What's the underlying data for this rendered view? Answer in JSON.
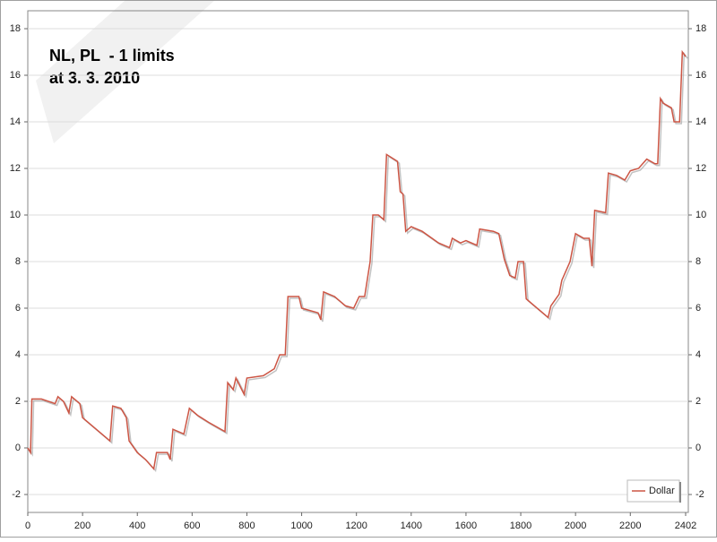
{
  "chart_data": {
    "type": "line",
    "title": "NL, PL  - 1 limits",
    "subtitle": "at 3. 3. 2010",
    "x": [
      0,
      10,
      15,
      50,
      100,
      110,
      130,
      150,
      160,
      190,
      200,
      250,
      290,
      300,
      310,
      340,
      360,
      370,
      400,
      430,
      460,
      470,
      510,
      520,
      530,
      570,
      590,
      620,
      660,
      720,
      730,
      750,
      760,
      790,
      800,
      860,
      900,
      920,
      940,
      950,
      990,
      1000,
      1060,
      1070,
      1080,
      1120,
      1160,
      1190,
      1210,
      1230,
      1250,
      1260,
      1280,
      1300,
      1310,
      1350,
      1360,
      1370,
      1380,
      1400,
      1440,
      1500,
      1540,
      1550,
      1580,
      1600,
      1640,
      1650,
      1700,
      1720,
      1740,
      1760,
      1780,
      1790,
      1810,
      1820,
      1850,
      1880,
      1900,
      1910,
      1940,
      1950,
      1980,
      2000,
      2030,
      2050,
      2060,
      2070,
      2110,
      2120,
      2150,
      2180,
      2200,
      2230,
      2260,
      2290,
      2300,
      2310,
      2320,
      2350,
      2360,
      2380,
      2390,
      2402
    ],
    "series": [
      {
        "name": "Dollar",
        "color": "#cc5544",
        "values": [
          0,
          -0.2,
          2.1,
          2.1,
          1.9,
          2.2,
          2.0,
          1.5,
          2.2,
          1.9,
          1.3,
          0.8,
          0.4,
          0.3,
          1.8,
          1.7,
          1.3,
          0.3,
          -0.2,
          -0.5,
          -0.9,
          -0.2,
          -0.2,
          -0.5,
          0.8,
          0.6,
          1.7,
          1.4,
          1.1,
          0.7,
          2.8,
          2.5,
          3.0,
          2.3,
          3.0,
          3.1,
          3.4,
          4.0,
          4.0,
          6.5,
          6.5,
          6.0,
          5.8,
          5.5,
          6.7,
          6.5,
          6.1,
          6.0,
          6.5,
          6.5,
          8.0,
          10.0,
          10.0,
          9.8,
          12.6,
          12.3,
          11.0,
          10.9,
          9.3,
          9.5,
          9.3,
          8.8,
          8.6,
          9.0,
          8.8,
          8.9,
          8.7,
          9.4,
          9.3,
          9.2,
          8.1,
          7.4,
          7.3,
          8.0,
          8.0,
          6.4,
          6.1,
          5.8,
          5.6,
          6.1,
          6.6,
          7.2,
          8.0,
          9.2,
          9.0,
          9.0,
          7.8,
          10.2,
          10.1,
          11.8,
          11.7,
          11.5,
          11.9,
          12.0,
          12.4,
          12.2,
          12.2,
          15.0,
          14.8,
          14.6,
          14.0,
          14.0,
          17.0,
          16.8
        ]
      }
    ],
    "xlim": [
      0,
      2402
    ],
    "xticks": [
      0,
      200,
      400,
      600,
      800,
      1000,
      1200,
      1400,
      1600,
      1800,
      2000,
      2200,
      2402
    ],
    "ylim": [
      -2.77,
      18.77
    ],
    "yticks": [
      -2,
      0,
      2,
      4,
      6,
      8,
      10,
      12,
      14,
      16,
      18
    ],
    "grid": true,
    "legend": "bottom-right"
  }
}
